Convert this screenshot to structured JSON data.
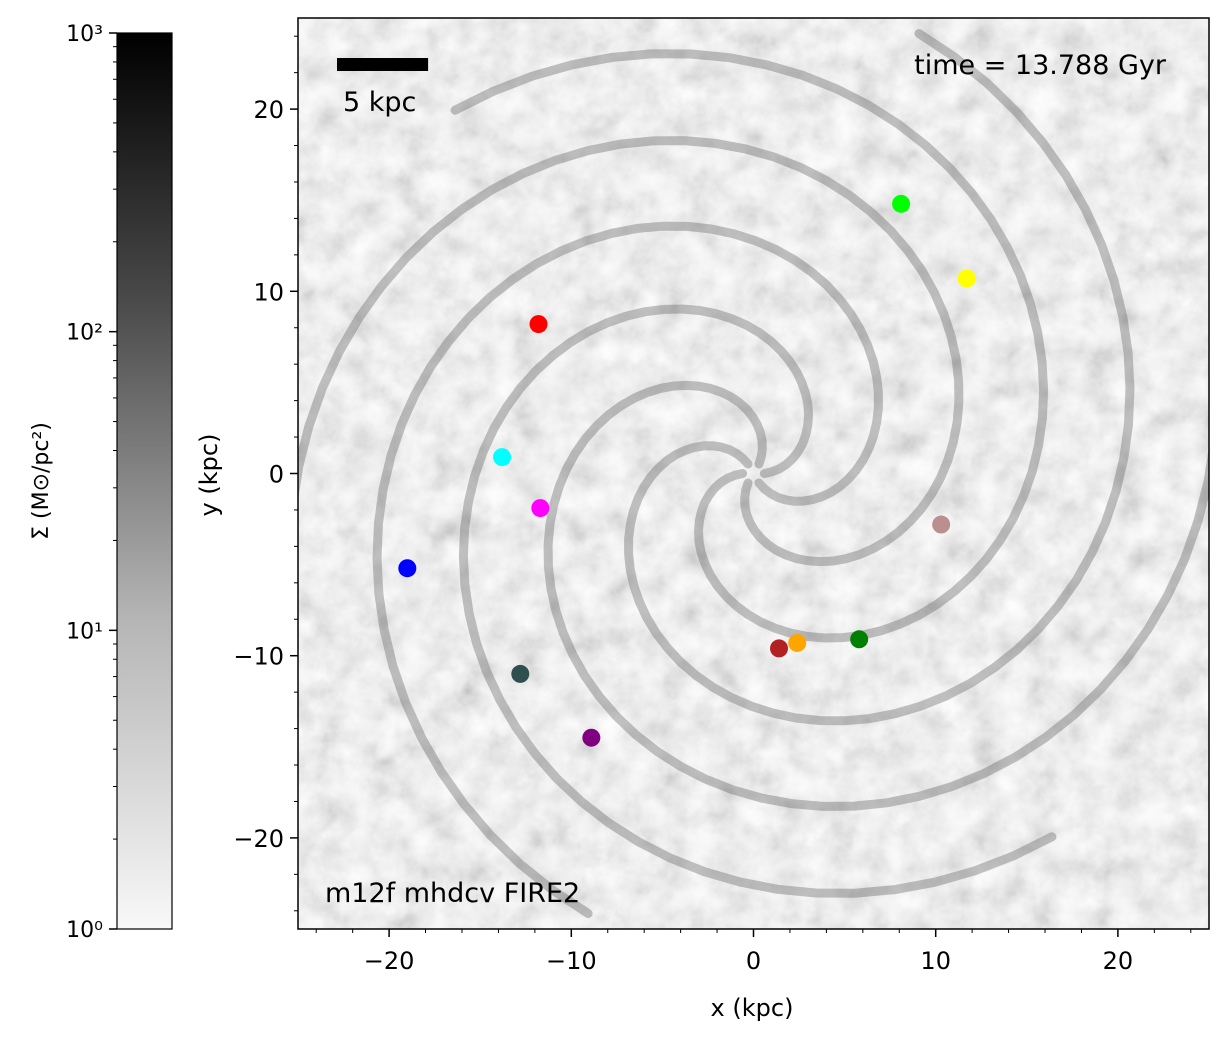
{
  "chart_data": [
    {
      "type": "scatter",
      "description_scope": "galaxy gas surface density map with marked points",
      "xlabel": "x (kpc)",
      "ylabel": "y (kpc)",
      "xlim": [
        -25,
        25
      ],
      "ylim": [
        -25,
        25
      ],
      "xticks": [
        -20,
        -10,
        0,
        10,
        20
      ],
      "yticks": [
        -20,
        -10,
        0,
        10,
        20
      ],
      "xtick_labels": [
        "−20",
        "−10",
        "0",
        "10",
        "20"
      ],
      "ytick_labels": [
        "−20",
        "−10",
        "0",
        "10",
        "20"
      ],
      "grid": false,
      "annotations": {
        "time": "time = 13.788 Gyr",
        "label": "m12f mhdcv FIRE2",
        "scale_bar": "5 kpc"
      },
      "scale_bar_length": 5,
      "points": [
        {
          "x": -11.8,
          "y": 8.2,
          "color": "#ff0000"
        },
        {
          "x": 8.1,
          "y": 14.8,
          "color": "#00ff00"
        },
        {
          "x": 11.7,
          "y": 10.7,
          "color": "#ffff00"
        },
        {
          "x": -13.8,
          "y": 0.9,
          "color": "#00ffff"
        },
        {
          "x": -11.7,
          "y": -1.9,
          "color": "#ff00ff"
        },
        {
          "x": 10.3,
          "y": -2.8,
          "color": "#bc8f8f"
        },
        {
          "x": -19.0,
          "y": -5.2,
          "color": "#0000ff"
        },
        {
          "x": 1.4,
          "y": -9.6,
          "color": "#b22222"
        },
        {
          "x": 2.4,
          "y": -9.3,
          "color": "#ffa500"
        },
        {
          "x": 5.8,
          "y": -9.1,
          "color": "#008000"
        },
        {
          "x": -12.8,
          "y": -11.0,
          "color": "#2f4f4f"
        },
        {
          "x": -8.9,
          "y": -14.5,
          "color": "#800080"
        }
      ]
    },
    {
      "type": "colorbar",
      "label": "Σ (M⊙/pc²)",
      "scale": "log",
      "range": [
        1,
        1000
      ],
      "tick_values": [
        1,
        10,
        100,
        1000
      ],
      "tick_labels": [
        "10⁰",
        "10¹",
        "10²",
        "10³"
      ],
      "colormap": [
        "#f8f8f8",
        "#000000"
      ]
    }
  ]
}
